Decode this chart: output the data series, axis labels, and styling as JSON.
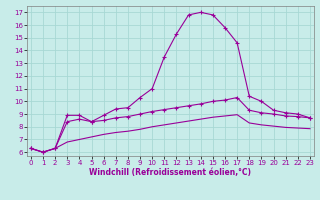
{
  "title": "",
  "xlabel": "Windchill (Refroidissement éolien,°C)",
  "ylabel": "",
  "bg_color": "#c8ece9",
  "grid_color": "#a8d8d4",
  "line_color": "#990099",
  "x_ticks": [
    0,
    1,
    2,
    3,
    4,
    5,
    6,
    7,
    8,
    9,
    10,
    11,
    12,
    13,
    14,
    15,
    16,
    17,
    18,
    19,
    20,
    21,
    22,
    23
  ],
  "y_ticks": [
    6,
    7,
    8,
    9,
    10,
    11,
    12,
    13,
    14,
    15,
    16,
    17
  ],
  "xlim": [
    -0.3,
    23.3
  ],
  "ylim": [
    5.7,
    17.5
  ],
  "series1_x": [
    0,
    1,
    2,
    3,
    4,
    5,
    6,
    7,
    8,
    9,
    10,
    11,
    12,
    13,
    14,
    15,
    16,
    17,
    18,
    19,
    20,
    21,
    22,
    23
  ],
  "series1_y": [
    6.3,
    6.0,
    6.3,
    8.9,
    8.9,
    8.4,
    8.9,
    9.4,
    9.5,
    10.3,
    11.0,
    13.5,
    15.3,
    16.8,
    17.0,
    16.8,
    15.8,
    14.6,
    10.4,
    10.0,
    9.3,
    9.1,
    9.0,
    8.7
  ],
  "series2_x": [
    0,
    1,
    2,
    3,
    4,
    5,
    6,
    7,
    8,
    9,
    10,
    11,
    12,
    13,
    14,
    15,
    16,
    17,
    18,
    19,
    20,
    21,
    22,
    23
  ],
  "series2_y": [
    6.3,
    6.0,
    6.3,
    8.4,
    8.6,
    8.4,
    8.5,
    8.7,
    8.8,
    9.0,
    9.2,
    9.35,
    9.5,
    9.65,
    9.8,
    10.0,
    10.1,
    10.3,
    9.3,
    9.1,
    9.0,
    8.85,
    8.8,
    8.7
  ],
  "series3_x": [
    0,
    1,
    2,
    3,
    4,
    5,
    6,
    7,
    8,
    9,
    10,
    11,
    12,
    13,
    14,
    15,
    16,
    17,
    18,
    19,
    20,
    21,
    22,
    23
  ],
  "series3_y": [
    6.3,
    6.0,
    6.3,
    6.8,
    7.0,
    7.2,
    7.4,
    7.55,
    7.65,
    7.8,
    8.0,
    8.15,
    8.3,
    8.45,
    8.6,
    8.75,
    8.85,
    8.95,
    8.3,
    8.15,
    8.05,
    7.95,
    7.9,
    7.85
  ]
}
